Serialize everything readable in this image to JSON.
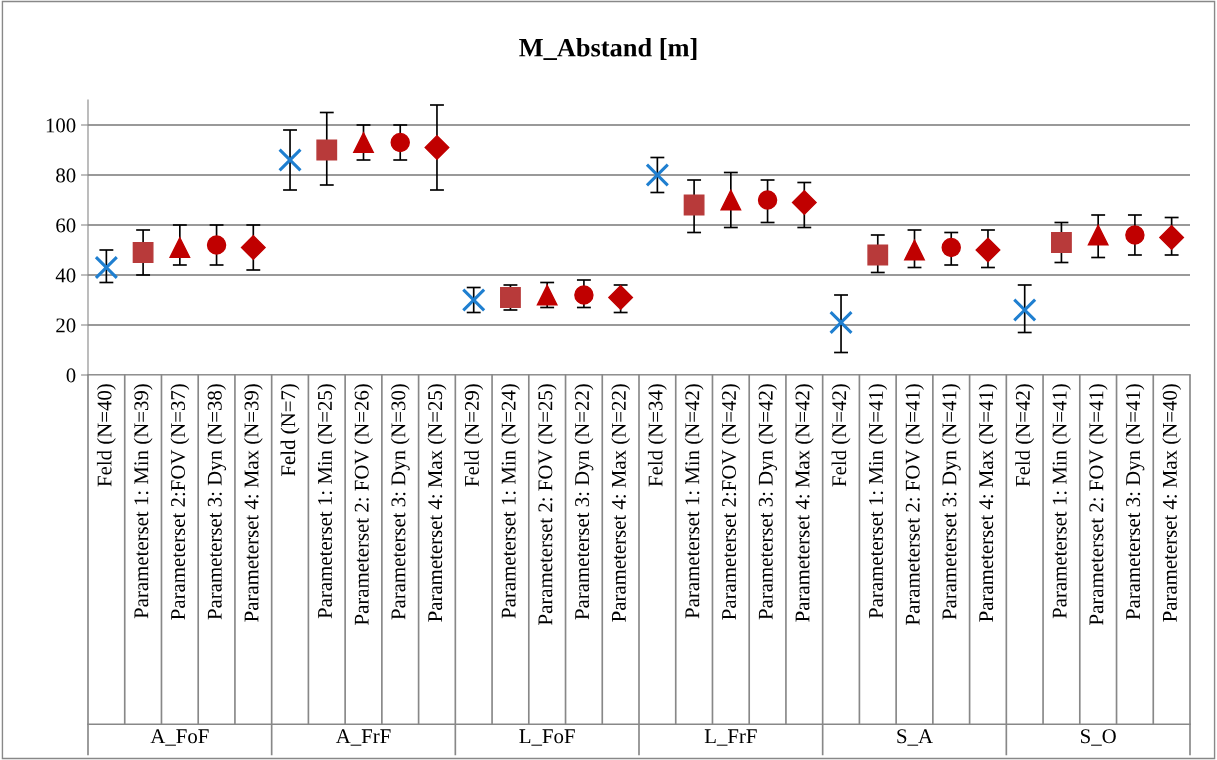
{
  "chart_data": {
    "type": "scatter",
    "title": "M_Abstand [m]",
    "categories": [
      "Feld (N=40)",
      "Parameterset 1: Min (N=39)",
      "Parameterset 2:FOV (N=37)",
      "Parameterset 3: Dyn (N=38)",
      "Parameterset 4: Max (N=39)",
      "Feld (N=7)",
      "Parameterset 1: Min (N=25)",
      "Parameterset 2: FOV (N=26)",
      "Parameterset 3: Dyn (N=30)",
      "Parameterset 4: Max (N=25)",
      "Feld (N=29)",
      "Parameterset 1: Min (N=24)",
      "Parameterset 2: FOV (N=25)",
      "Parameterset 3: Dyn (N=22)",
      "Parameterset 4: Max (N=22)",
      "Feld (N=34)",
      "Parameterset 1: Min (N=42)",
      "Parameterset 2:FOV (N=42)",
      "Parameterset 3: Dyn (N=42)",
      "Parameterset 4: Max (N=42)",
      "Feld (N=42)",
      "Parameterset 1: Min (N=41)",
      "Parameterset 2: FOV (N=41)",
      "Parameterset 3: Dyn (N=41)",
      "Parameterset 4: Max (N=41)",
      "Feld (N=42)",
      "Parameterset 1: Min (N=41)",
      "Parameterset 2: FOV (N=41)",
      "Parameterset 3: Dyn (N=41)",
      "Parameterset 4: Max (N=40)"
    ],
    "annotations": [
      "A_FoF",
      "A_FrF",
      "L_FoF",
      "L_FrF",
      "S_A",
      "S_O"
    ],
    "series": [
      {
        "color": "#1f7fd0",
        "marker": "cross",
        "values": [
          43,
          null,
          null,
          null,
          null,
          86,
          null,
          null,
          null,
          null,
          30,
          null,
          null,
          null,
          null,
          80,
          null,
          null,
          null,
          null,
          21,
          null,
          null,
          null,
          null,
          26,
          null,
          null,
          null,
          null
        ],
        "errors": [
          [
            37,
            50
          ],
          null,
          null,
          null,
          null,
          [
            74,
            98
          ],
          null,
          null,
          null,
          null,
          [
            25,
            35
          ],
          null,
          null,
          null,
          null,
          [
            73,
            87
          ],
          null,
          null,
          null,
          null,
          [
            9,
            32
          ],
          null,
          null,
          null,
          null,
          [
            17,
            36
          ],
          null,
          null,
          null,
          null
        ]
      },
      {
        "color": "#b83a3a",
        "marker": "square",
        "values": [
          null,
          49,
          null,
          null,
          null,
          null,
          90,
          null,
          null,
          null,
          null,
          31,
          null,
          null,
          null,
          null,
          68,
          null,
          null,
          null,
          null,
          48,
          null,
          null,
          null,
          null,
          53,
          null,
          null,
          null
        ],
        "errors": [
          null,
          [
            40,
            58
          ],
          null,
          null,
          null,
          null,
          [
            76,
            105
          ],
          null,
          null,
          null,
          null,
          [
            26,
            36
          ],
          null,
          null,
          null,
          null,
          [
            57,
            78
          ],
          null,
          null,
          null,
          null,
          [
            41,
            56
          ],
          null,
          null,
          null,
          null,
          [
            45,
            61
          ],
          null,
          null,
          null
        ]
      },
      {
        "color": "#c00000",
        "marker": "triangle",
        "values": [
          null,
          null,
          51,
          null,
          null,
          null,
          null,
          93,
          null,
          null,
          null,
          null,
          32,
          null,
          null,
          null,
          null,
          70,
          null,
          null,
          null,
          null,
          50,
          null,
          null,
          null,
          null,
          56,
          null,
          null
        ],
        "errors": [
          null,
          null,
          [
            44,
            60
          ],
          null,
          null,
          null,
          null,
          [
            86,
            100
          ],
          null,
          null,
          null,
          null,
          [
            27,
            37
          ],
          null,
          null,
          null,
          null,
          [
            59,
            81
          ],
          null,
          null,
          null,
          null,
          [
            43,
            58
          ],
          null,
          null,
          null,
          null,
          [
            47,
            64
          ],
          null,
          null
        ]
      },
      {
        "color": "#c00000",
        "marker": "circle",
        "values": [
          null,
          null,
          null,
          52,
          null,
          null,
          null,
          null,
          93,
          null,
          null,
          null,
          null,
          32,
          null,
          null,
          null,
          null,
          70,
          null,
          null,
          null,
          null,
          51,
          null,
          null,
          null,
          null,
          56,
          null
        ],
        "errors": [
          null,
          null,
          null,
          [
            44,
            60
          ],
          null,
          null,
          null,
          null,
          [
            86,
            100
          ],
          null,
          null,
          null,
          null,
          [
            27,
            38
          ],
          null,
          null,
          null,
          null,
          [
            61,
            78
          ],
          null,
          null,
          null,
          null,
          [
            44,
            57
          ],
          null,
          null,
          null,
          null,
          [
            48,
            64
          ],
          null
        ]
      },
      {
        "color": "#c00000",
        "marker": "diamond",
        "values": [
          null,
          null,
          null,
          null,
          51,
          null,
          null,
          null,
          null,
          91,
          null,
          null,
          null,
          null,
          31,
          null,
          null,
          null,
          null,
          69,
          null,
          null,
          null,
          null,
          50,
          null,
          null,
          null,
          null,
          55
        ],
        "errors": [
          null,
          null,
          null,
          null,
          [
            42,
            60
          ],
          null,
          null,
          null,
          null,
          [
            74,
            108
          ],
          null,
          null,
          null,
          null,
          [
            25,
            36
          ],
          null,
          null,
          null,
          null,
          [
            59,
            77
          ],
          null,
          null,
          null,
          null,
          [
            43,
            58
          ],
          null,
          null,
          null,
          null,
          [
            48,
            63
          ]
        ]
      }
    ],
    "ylim": [
      0,
      110
    ],
    "yticks": [
      0,
      20,
      40,
      60,
      80,
      100
    ],
    "grid": "y",
    "legend": false
  }
}
